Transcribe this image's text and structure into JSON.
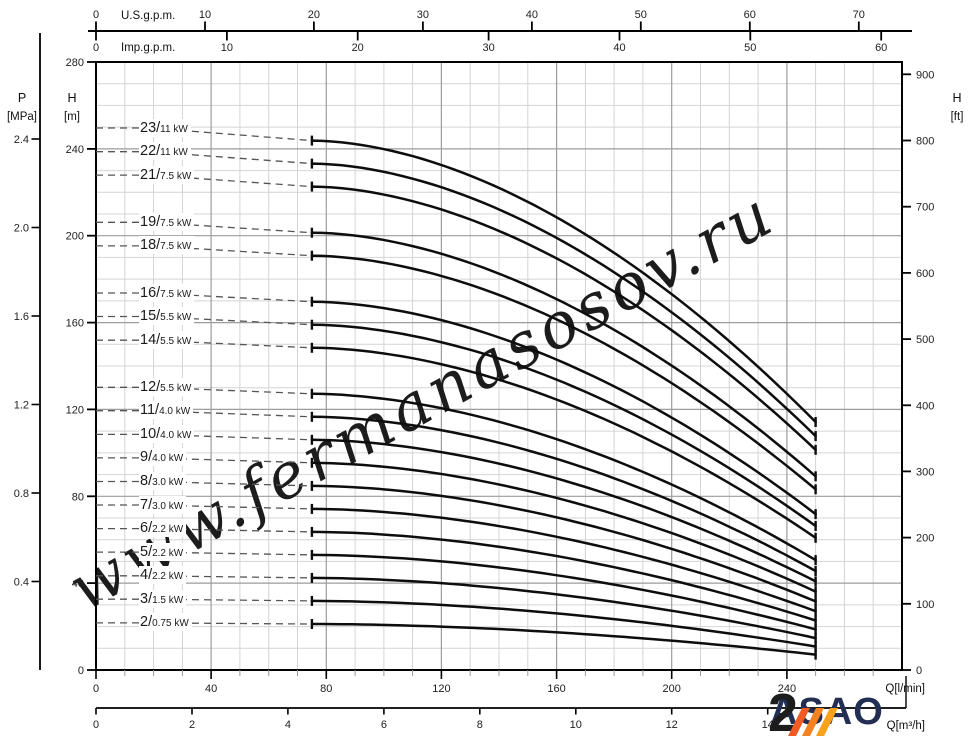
{
  "watermark": "www.fermanasosov.ru",
  "logo": {
    "text": "ASAO"
  },
  "colors": {
    "curve": "#0d0d0d",
    "dashed": "#555555",
    "grid_minor": "#d4d4d4",
    "grid_major": "#9c9c9c",
    "axis": "#000000",
    "watermark": "rgba(127,170,160,0.5)",
    "logo_text": "#232f52",
    "logo_orange_1": "#f05a23",
    "logo_orange_2": "#f58220",
    "logo_orange_3": "#f9a11b"
  },
  "chart_data": {
    "type": "line",
    "title": "",
    "x_range_lpm": [
      0,
      280
    ],
    "y_range_m": [
      0,
      280
    ],
    "grid": {
      "minor_lpm": 10,
      "major_lpm": 40,
      "minor_m": 10,
      "major_m": 40
    },
    "axes": {
      "top_us": {
        "label": "U.S.g.p.m.",
        "ticks": [
          0,
          10,
          20,
          30,
          40,
          50,
          60,
          70
        ],
        "lpm_per_unit": 3.7854
      },
      "top_imp": {
        "label": "Imp.g.p.m.",
        "ticks": [
          0,
          10,
          20,
          30,
          40,
          50,
          60
        ],
        "lpm_per_unit": 4.5461
      },
      "left_p": {
        "label": "P",
        "unit": "[MPa]",
        "ticks": [
          "2.4",
          "2.0",
          "1.6",
          "1.2",
          "0.8",
          "0.4"
        ],
        "m_per_mpa": 101.9
      },
      "left_h": {
        "label": "H",
        "unit": "[m]",
        "ticks": [
          280,
          240,
          200,
          160,
          120,
          80,
          40,
          0
        ]
      },
      "right_h": {
        "label": "H",
        "unit": "[ft]",
        "ticks": [
          900,
          800,
          700,
          600,
          500,
          400,
          300,
          200,
          100,
          0
        ],
        "m_per_ft": 0.3048
      },
      "bottom_lpm": {
        "label": "Q[l/min]",
        "ticks": [
          0,
          40,
          80,
          120,
          160,
          200,
          240
        ],
        "minor_step": 10,
        "minor_max": 270
      },
      "bottom_m3h": {
        "label": "Q[m³/h]",
        "ticks": [
          0,
          2,
          4,
          6,
          8,
          10,
          12,
          14
        ],
        "lpm_per_unit": 16.6667
      }
    },
    "curves_common": {
      "q_start_lpm": 75,
      "q_end_lpm": 250,
      "droop_exponent": 1.8
    },
    "curves": [
      {
        "stages": 23,
        "power": "11 kW",
        "h_shutoff_m": 249.6,
        "h_start_m": 243.8,
        "h_end_m": 114.2
      },
      {
        "stages": 22,
        "power": "11 kW",
        "h_shutoff_m": 238.7,
        "h_start_m": 233.2,
        "h_end_m": 107.7
      },
      {
        "stages": 21,
        "power": "7.5 kW",
        "h_shutoff_m": 227.9,
        "h_start_m": 222.6,
        "h_end_m": 101.4
      },
      {
        "stages": 19,
        "power": "7.5 kW",
        "h_shutoff_m": 206.2,
        "h_start_m": 201.4,
        "h_end_m": 89.2
      },
      {
        "stages": 18,
        "power": "7.5 kW",
        "h_shutoff_m": 195.3,
        "h_start_m": 190.8,
        "h_end_m": 83.2
      },
      {
        "stages": 16,
        "power": "7.5 kW",
        "h_shutoff_m": 173.6,
        "h_start_m": 169.6,
        "h_end_m": 71.8
      },
      {
        "stages": 15,
        "power": "5.5 kW",
        "h_shutoff_m": 162.8,
        "h_start_m": 159.0,
        "h_end_m": 66.3
      },
      {
        "stages": 14,
        "power": "5.5 kW",
        "h_shutoff_m": 151.9,
        "h_start_m": 148.4,
        "h_end_m": 60.9
      },
      {
        "stages": 12,
        "power": "5.5 kW",
        "h_shutoff_m": 130.2,
        "h_start_m": 127.2,
        "h_end_m": 50.6
      },
      {
        "stages": 11,
        "power": "4.0 kW",
        "h_shutoff_m": 119.4,
        "h_start_m": 116.6,
        "h_end_m": 45.6
      },
      {
        "stages": 10,
        "power": "4.0 kW",
        "h_shutoff_m": 108.5,
        "h_start_m": 106.0,
        "h_end_m": 40.8
      },
      {
        "stages": 9,
        "power": "4.0 kW",
        "h_shutoff_m": 97.7,
        "h_start_m": 95.4,
        "h_end_m": 36.1
      },
      {
        "stages": 8,
        "power": "3.0 kW",
        "h_shutoff_m": 86.8,
        "h_start_m": 84.8,
        "h_end_m": 31.6
      },
      {
        "stages": 7,
        "power": "3.0 kW",
        "h_shutoff_m": 76.0,
        "h_start_m": 74.2,
        "h_end_m": 27.1
      },
      {
        "stages": 6,
        "power": "2.2 kW",
        "h_shutoff_m": 65.1,
        "h_start_m": 63.6,
        "h_end_m": 22.8
      },
      {
        "stages": 5,
        "power": "2.2 kW",
        "h_shutoff_m": 54.3,
        "h_start_m": 53.0,
        "h_end_m": 18.7
      },
      {
        "stages": 4,
        "power": "2.2 kW",
        "h_shutoff_m": 43.4,
        "h_start_m": 42.4,
        "h_end_m": 14.7
      },
      {
        "stages": 3,
        "power": "1.5 kW",
        "h_shutoff_m": 32.6,
        "h_start_m": 31.8,
        "h_end_m": 10.8
      },
      {
        "stages": 2,
        "power": "0.75 kW",
        "h_shutoff_m": 21.7,
        "h_start_m": 21.2,
        "h_end_m": 7.1
      }
    ]
  }
}
